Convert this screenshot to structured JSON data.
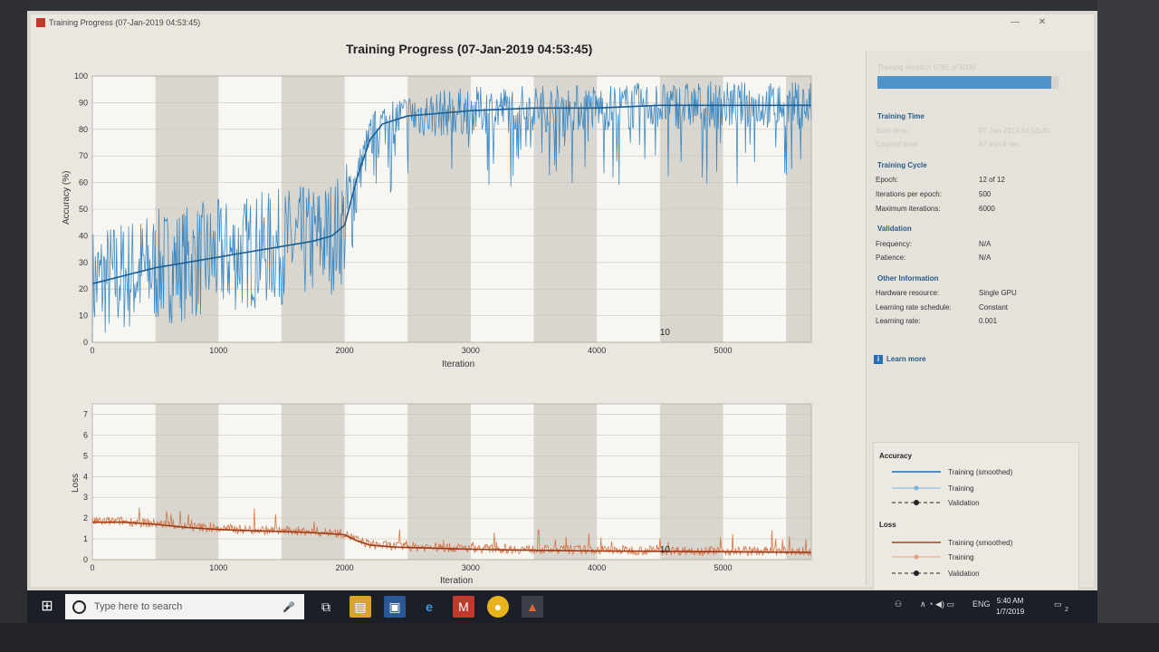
{
  "window": {
    "title": "Training Progress (07-Jan-2019 04:53:45)",
    "minimize": "—",
    "close": "✕"
  },
  "figure_title": "Training Progress (07-Jan-2019 04:53:45)",
  "chart_data": [
    {
      "type": "line",
      "title": "",
      "xlabel": "Iteration",
      "ylabel": "Accuracy (%)",
      "xlim": [
        0,
        5700
      ],
      "ylim": [
        0,
        100
      ],
      "xticks": [
        0,
        1000,
        2000,
        3000,
        4000,
        5000
      ],
      "yticks": [
        0,
        10,
        20,
        30,
        40,
        50,
        60,
        70,
        80,
        90,
        100
      ],
      "epoch_label": "10",
      "series": [
        {
          "name": "Training (smoothed)",
          "x": [
            0,
            250,
            500,
            750,
            1000,
            1250,
            1500,
            1750,
            1900,
            2000,
            2100,
            2200,
            2300,
            2500,
            3000,
            3500,
            4000,
            4500,
            5000,
            5500,
            5700
          ],
          "y": [
            22,
            25,
            28,
            30,
            32,
            34,
            36,
            38,
            40,
            44,
            62,
            76,
            82,
            85,
            87,
            88,
            88,
            89,
            89,
            89,
            89
          ]
        }
      ],
      "grid": true,
      "epoch_shading": true
    },
    {
      "type": "line",
      "title": "",
      "xlabel": "Iteration",
      "ylabel": "Loss",
      "xlim": [
        0,
        5700
      ],
      "ylim": [
        0,
        7.5
      ],
      "xticks": [
        0,
        1000,
        2000,
        3000,
        4000,
        5000
      ],
      "yticks": [
        0,
        1,
        2,
        3,
        4,
        5,
        6,
        7
      ],
      "epoch_label": "10",
      "series": [
        {
          "name": "Training (smoothed)",
          "x": [
            0,
            250,
            500,
            750,
            1000,
            1250,
            1500,
            1750,
            2000,
            2100,
            2200,
            2400,
            3000,
            3500,
            4000,
            4500,
            5000,
            5700
          ],
          "y": [
            1.8,
            1.8,
            1.7,
            1.55,
            1.45,
            1.4,
            1.35,
            1.3,
            1.2,
            0.9,
            0.7,
            0.6,
            0.5,
            0.45,
            0.42,
            0.4,
            0.38,
            0.35
          ]
        }
      ],
      "grid": true,
      "epoch_shading": true
    }
  ],
  "side_panel": {
    "progress_text": "Training iteration 5765 of 6000",
    "progress_fraction": 0.96,
    "training_time": {
      "title": "Training Time",
      "rows": [
        {
          "label": "Start time:",
          "value": "07-Jan-2019 04:53:45"
        },
        {
          "label": "Elapsed time:",
          "value": "47 min 4 sec"
        }
      ]
    },
    "training_cycle": {
      "title": "Training Cycle",
      "rows": [
        {
          "label": "Epoch:",
          "value": "12 of 12"
        },
        {
          "label": "Iterations per epoch:",
          "value": "500"
        },
        {
          "label": "Maximum iterations:",
          "value": "6000"
        }
      ]
    },
    "validation": {
      "title": "Validation",
      "rows": [
        {
          "label": "Frequency:",
          "value": "N/A"
        },
        {
          "label": "Patience:",
          "value": "N/A"
        }
      ]
    },
    "other": {
      "title": "Other Information",
      "rows": [
        {
          "label": "Hardware resource:",
          "value": "Single GPU"
        },
        {
          "label": "Learning rate schedule:",
          "value": "Constant"
        },
        {
          "label": "Learning rate:",
          "value": "0.001"
        }
      ]
    },
    "learn_more": "Learn more"
  },
  "legend": {
    "accuracy_title": "Accuracy",
    "loss_title": "Loss",
    "accuracy_items": [
      "Training (smoothed)",
      "Training",
      "Validation"
    ],
    "loss_items": [
      "Training (smoothed)",
      "Training",
      "Validation"
    ],
    "colors": {
      "accuracy": "#1f6fb0",
      "accuracy_raw": "#7fb2da",
      "loss": "#c8562b",
      "loss_raw": "#e8a07f"
    }
  },
  "taskbar": {
    "search_placeholder": "Type here to search",
    "lang": "ENG",
    "time": "5:40 AM",
    "date": "1/7/2019",
    "notification_count": "2"
  }
}
